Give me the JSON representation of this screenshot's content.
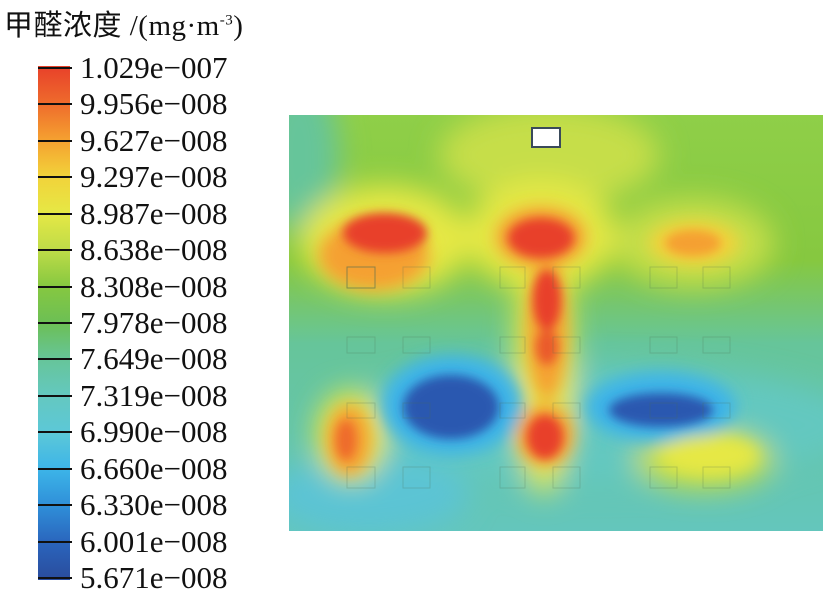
{
  "chart_data": {
    "type": "heatmap",
    "title": "甲醛浓度 /(mg·m",
    "title_unit_exponent": "-3",
    "title_close": ")",
    "colorbar": {
      "labels": [
        "1.029e−007",
        "9.956e−008",
        "9.627e−008",
        "9.297e−008",
        "8.987e−008",
        "8.638e−008",
        "8.308e−008",
        "7.978e−008",
        "7.649e−008",
        "7.319e−008",
        "6.990e−008",
        "6.660e−008",
        "6.330e−008",
        "6.001e−008",
        "5.671e−008"
      ],
      "values": [
        1.029e-07,
        9.956e-08,
        9.627e-08,
        9.297e-08,
        8.987e-08,
        8.638e-08,
        8.308e-08,
        7.978e-08,
        7.649e-08,
        7.319e-08,
        6.99e-08,
        6.66e-08,
        6.33e-08,
        6.001e-08,
        5.671e-08
      ],
      "colors": [
        "#e8402a",
        "#ee6a2c",
        "#f5a030",
        "#f2d23a",
        "#e6e845",
        "#bfdc48",
        "#86c840",
        "#6cbf55",
        "#66c59a",
        "#64c8c0",
        "#5cc8d8",
        "#3cb4e8",
        "#2f8ed8",
        "#2a64bc",
        "#2a4c9c"
      ],
      "range": [
        5.671e-08,
        1.029e-07
      ]
    }
  }
}
